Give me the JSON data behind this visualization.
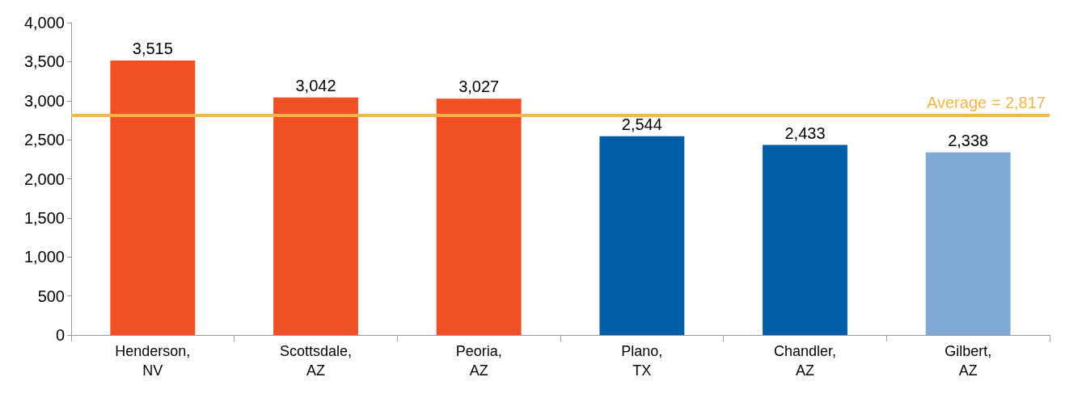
{
  "chart_data": {
    "type": "bar",
    "categories": [
      "Henderson,\nNV",
      "Scottsdale,\nAZ",
      "Peoria,\nAZ",
      "Plano,\nTX",
      "Chandler,\nAZ",
      "Gilbert,\nAZ"
    ],
    "values": [
      3515,
      3042,
      3027,
      2544,
      2433,
      2338
    ],
    "value_labels": [
      "3,515",
      "3,042",
      "3,027",
      "2,544",
      "2,433",
      "2,338"
    ],
    "colors": [
      "#f05023",
      "#f05023",
      "#f05023",
      "#005ea8",
      "#005ea8",
      "#7fa9d3"
    ],
    "ylim": [
      0,
      4000
    ],
    "yticks": [
      0,
      500,
      {
        "value": 1000,
        "label": "1,000"
      },
      {
        "value": 1500,
        "label": "1,500"
      },
      {
        "value": 2000,
        "label": "2,000"
      },
      {
        "value": 2500,
        "label": "2,500"
      },
      {
        "value": 3000,
        "label": "3,000"
      },
      {
        "value": 3500,
        "label": "3,500"
      },
      {
        "value": 4000,
        "label": "4,000"
      }
    ],
    "grid": false,
    "ref_lines": [
      {
        "axis": "y",
        "value": 2817,
        "label": "Average = 2,817",
        "color": "#f5b547"
      }
    ]
  }
}
